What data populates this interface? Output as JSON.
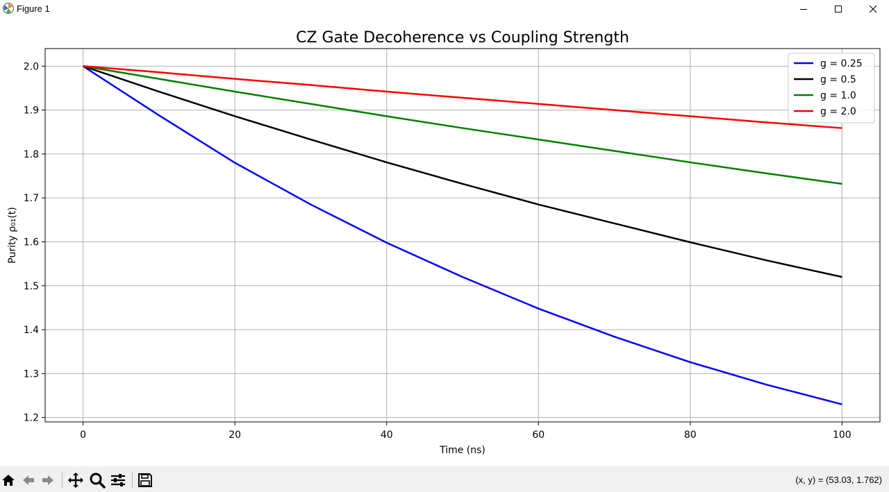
{
  "window": {
    "title": "Figure 1",
    "controls": {
      "minimize": "─",
      "maximize": "☐",
      "close": "✕"
    }
  },
  "toolbar": {
    "tools": [
      "home-icon",
      "back-icon",
      "forward-icon",
      "pan-icon",
      "zoom-icon",
      "configure-subplots-icon",
      "save-icon"
    ],
    "coords": "(x, y) = (53.03, 1.762)"
  },
  "chart_data": {
    "type": "line",
    "title": "CZ Gate Decoherence vs Coupling Strength",
    "xlabel": "Time (ns)",
    "ylabel": "Purity ρ₀₁(t)",
    "xlim": [
      -5,
      105
    ],
    "ylim": [
      1.19,
      2.04
    ],
    "xticks": [
      0,
      20,
      40,
      60,
      80,
      100
    ],
    "xtick_labels": [
      "0",
      "20",
      "40",
      "60",
      "80",
      "100"
    ],
    "yticks": [
      1.2,
      1.3,
      1.4,
      1.5,
      1.6,
      1.7,
      1.8,
      1.9,
      2.0
    ],
    "ytick_labels": [
      "1.2",
      "1.3",
      "1.4",
      "1.5",
      "1.6",
      "1.7",
      "1.8",
      "1.9",
      "2.0"
    ],
    "grid": true,
    "legend_position": "top-right",
    "x": [
      0,
      10,
      20,
      30,
      40,
      50,
      60,
      70,
      80,
      90,
      100
    ],
    "series": [
      {
        "name": "g = 0.25",
        "color": "#0000ff",
        "values": [
          2.0,
          1.888,
          1.78,
          1.685,
          1.598,
          1.52,
          1.448,
          1.384,
          1.326,
          1.275,
          1.23
        ]
      },
      {
        "name": "g = 0.5",
        "color": "#000000",
        "values": [
          2.0,
          1.942,
          1.886,
          1.833,
          1.781,
          1.732,
          1.685,
          1.642,
          1.599,
          1.558,
          1.52
        ]
      },
      {
        "name": "g = 1.0",
        "color": "#008000",
        "values": [
          2.0,
          1.971,
          1.942,
          1.914,
          1.886,
          1.859,
          1.833,
          1.807,
          1.781,
          1.756,
          1.732
        ]
      },
      {
        "name": "g = 2.0",
        "color": "#ff0000",
        "values": [
          2.0,
          1.986,
          1.971,
          1.957,
          1.942,
          1.928,
          1.914,
          1.9,
          1.886,
          1.872,
          1.859
        ]
      }
    ]
  }
}
